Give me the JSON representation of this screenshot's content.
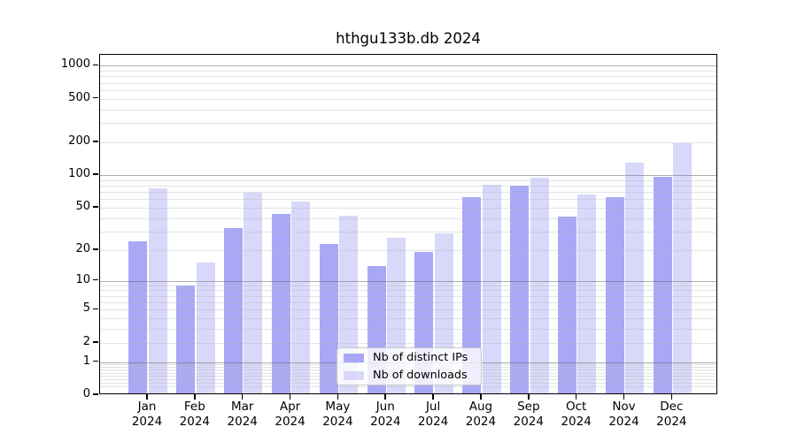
{
  "title": "hthgu133b.db 2024",
  "chart_data": {
    "type": "bar",
    "title": "hthgu133b.db 2024",
    "xlabel": "",
    "ylabel": "",
    "x_tick_line2": "2024",
    "categories": [
      "Jan",
      "Feb",
      "Mar",
      "Apr",
      "May",
      "Jun",
      "Jul",
      "Aug",
      "Sep",
      "Oct",
      "Nov",
      "Dec"
    ],
    "series": [
      {
        "name": "Nb of distinct IPs",
        "color": "#a8a8f7",
        "values": [
          24,
          9,
          32,
          44,
          23,
          14,
          19,
          63,
          80,
          41,
          62,
          96
        ]
      },
      {
        "name": "Nb of downloads",
        "color": "#d8d8fa",
        "values": [
          76,
          15,
          69,
          57,
          42,
          26,
          29,
          82,
          95,
          66,
          130,
          195
        ]
      }
    ],
    "y_scale": "log10(1+v)",
    "y_tick_values": [
      0,
      1,
      2,
      5,
      10,
      20,
      50,
      100,
      200,
      500,
      1000
    ],
    "y_tick_labels": [
      "0",
      "1",
      "2",
      "5",
      "10",
      "20",
      "50",
      "100",
      "200",
      "500",
      "1000"
    ],
    "major_grid_values": [
      1,
      10,
      100,
      1000
    ],
    "minor_grid_values": [
      0.2,
      0.3,
      0.4,
      0.5,
      0.6,
      0.7,
      0.8,
      0.9,
      2,
      3,
      4,
      5,
      6,
      7,
      8,
      9,
      20,
      30,
      40,
      50,
      60,
      70,
      80,
      90,
      200,
      300,
      400,
      500,
      600,
      700,
      800,
      900
    ],
    "ylim": [
      0,
      1260
    ],
    "grid": true,
    "legend_position": "lower center",
    "legend_entries": [
      "Nb of distinct IPs",
      "Nb of downloads"
    ]
  },
  "colors": {
    "background": "#ffffff",
    "spine": "#000000",
    "distinct_ips_bar": "#a8a8f7",
    "downloads_bar": "#d8d8fa",
    "major_gridline": "#6e6e6e",
    "minor_gridline": "#b9b9b9",
    "legend_border": "#c9c9c9"
  }
}
